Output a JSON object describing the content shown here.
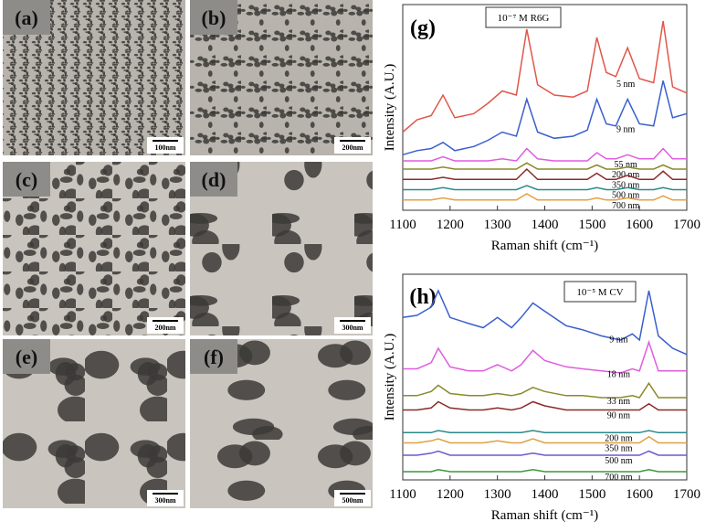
{
  "panels": [
    {
      "label": "(a)",
      "scale_bar": "100nm"
    },
    {
      "label": "(b)",
      "scale_bar": "200nm"
    },
    {
      "label": "(c)",
      "scale_bar": "200nm"
    },
    {
      "label": "(d)",
      "scale_bar": "300nm"
    },
    {
      "label": "(e)",
      "scale_bar": "300nm"
    },
    {
      "label": "(f)",
      "scale_bar": "500nm"
    }
  ],
  "chart_data": [
    {
      "type": "line",
      "panel_label": "(g)",
      "annotation": "10⁻⁷ M R6G",
      "xlabel": "Raman shift (cm⁻¹)",
      "ylabel": "Intensity (A.U.)",
      "x": [
        1100,
        1130,
        1160,
        1185,
        1210,
        1250,
        1280,
        1310,
        1340,
        1362,
        1385,
        1420,
        1460,
        1490,
        1510,
        1530,
        1550,
        1575,
        1600,
        1630,
        1650,
        1670,
        1700
      ],
      "xlim": [
        1100,
        1700
      ],
      "xticks": [
        1100,
        1200,
        1300,
        1400,
        1500,
        1600,
        1700
      ],
      "ylim": [
        0,
        100
      ],
      "series": [
        {
          "name": "5 nm",
          "color": "#e0574b",
          "values": [
            38,
            44,
            46,
            56,
            45,
            47,
            52,
            58,
            56,
            88,
            61,
            56,
            55,
            58,
            84,
            67,
            65,
            79,
            64,
            62,
            92,
            60,
            57
          ]
        },
        {
          "name": "9 nm",
          "color": "#3a5fcd",
          "values": [
            27,
            29,
            30,
            33,
            29,
            31,
            34,
            38,
            36,
            54,
            38,
            35,
            36,
            39,
            54,
            42,
            41,
            54,
            42,
            41,
            63,
            45,
            47
          ]
        },
        {
          "name": "55 nm",
          "color": "#e05ce0",
          "values": [
            24,
            24,
            24,
            26,
            24,
            24,
            24,
            25,
            24,
            30,
            25,
            24,
            24,
            24,
            28,
            25,
            25,
            27,
            25,
            25,
            30,
            25,
            25
          ]
        },
        {
          "name": "200 nm",
          "color": "#8a8a2a",
          "values": [
            20,
            20,
            20,
            21,
            20,
            20,
            20,
            20,
            20,
            23,
            20,
            20,
            20,
            20,
            22,
            20,
            20,
            21,
            20,
            20,
            22,
            20,
            20
          ]
        },
        {
          "name": "350 nm",
          "color": "#8b2a2a",
          "values": [
            15,
            15,
            15,
            16,
            15,
            15,
            15,
            15,
            15,
            20,
            15,
            15,
            15,
            15,
            18,
            15,
            15,
            17,
            15,
            15,
            19,
            15,
            15
          ]
        },
        {
          "name": "500 nm",
          "color": "#2a8a8a",
          "values": [
            10,
            10,
            10,
            11,
            10,
            10,
            10,
            10,
            10,
            12,
            10,
            10,
            10,
            10,
            11,
            10,
            10,
            11,
            10,
            10,
            11,
            10,
            10
          ]
        },
        {
          "name": "700 nm",
          "color": "#e0a040",
          "values": [
            5,
            5,
            5,
            6,
            5,
            5,
            5,
            5,
            5,
            8,
            5,
            5,
            5,
            5,
            6,
            5,
            5,
            6,
            5,
            5,
            7,
            5,
            5
          ]
        }
      ]
    },
    {
      "type": "line",
      "panel_label": "(h)",
      "annotation": "10⁻⁵ M CV",
      "xlabel": "Raman shift (cm⁻¹)",
      "ylabel": "Intensity (A.U.)",
      "x": [
        1100,
        1130,
        1160,
        1175,
        1200,
        1240,
        1270,
        1300,
        1330,
        1350,
        1375,
        1400,
        1445,
        1480,
        1520,
        1560,
        1585,
        1600,
        1620,
        1640,
        1670,
        1700
      ],
      "xlim": [
        1100,
        1700
      ],
      "xticks": [
        1100,
        1200,
        1300,
        1400,
        1500,
        1600,
        1700
      ],
      "ylim": [
        0,
        100
      ],
      "series": [
        {
          "name": "9 nm",
          "color": "#3a5fcd",
          "values": [
            79,
            80,
            84,
            92,
            79,
            76,
            74,
            79,
            74,
            79,
            86,
            82,
            75,
            73,
            70,
            68,
            71,
            68,
            92,
            70,
            64,
            61
          ]
        },
        {
          "name": "18 nm",
          "color": "#e05ce0",
          "values": [
            54,
            54,
            57,
            64,
            55,
            53,
            53,
            56,
            53,
            56,
            63,
            58,
            55,
            54,
            53,
            52,
            54,
            53,
            67,
            53,
            53,
            53
          ]
        },
        {
          "name": "33 nm",
          "color": "#8a8a2a",
          "values": [
            41,
            41,
            43,
            46,
            42,
            41,
            41,
            42,
            41,
            42,
            45,
            43,
            41,
            41,
            40,
            40,
            41,
            40,
            47,
            40,
            40,
            40
          ]
        },
        {
          "name": "90 nm",
          "color": "#8b2a2a",
          "values": [
            34,
            34,
            35,
            38,
            35,
            34,
            34,
            35,
            34,
            35,
            38,
            36,
            34,
            34,
            34,
            34,
            34,
            34,
            37,
            34,
            34,
            34
          ]
        },
        {
          "name": "200 nm",
          "color": "#2a8a8a",
          "values": [
            23,
            23,
            23,
            24,
            23,
            23,
            23,
            23,
            23,
            23,
            24,
            23,
            23,
            23,
            23,
            23,
            23,
            23,
            24,
            23,
            23,
            23
          ]
        },
        {
          "name": "350 nm",
          "color": "#e0a040",
          "values": [
            18,
            18,
            19,
            20,
            18,
            18,
            18,
            19,
            18,
            18,
            20,
            18,
            18,
            18,
            18,
            18,
            18,
            18,
            21,
            18,
            18,
            18
          ]
        },
        {
          "name": "500 nm",
          "color": "#6a5acd",
          "values": [
            12,
            12,
            13,
            14,
            12,
            12,
            12,
            12,
            12,
            12,
            13,
            12,
            12,
            12,
            12,
            12,
            12,
            12,
            14,
            12,
            12,
            12
          ]
        },
        {
          "name": "700 nm",
          "color": "#3a9a3a",
          "values": [
            4,
            4,
            4,
            5,
            4,
            4,
            4,
            4,
            4,
            4,
            5,
            4,
            4,
            4,
            4,
            4,
            4,
            4,
            5,
            4,
            4,
            4
          ]
        }
      ]
    }
  ]
}
